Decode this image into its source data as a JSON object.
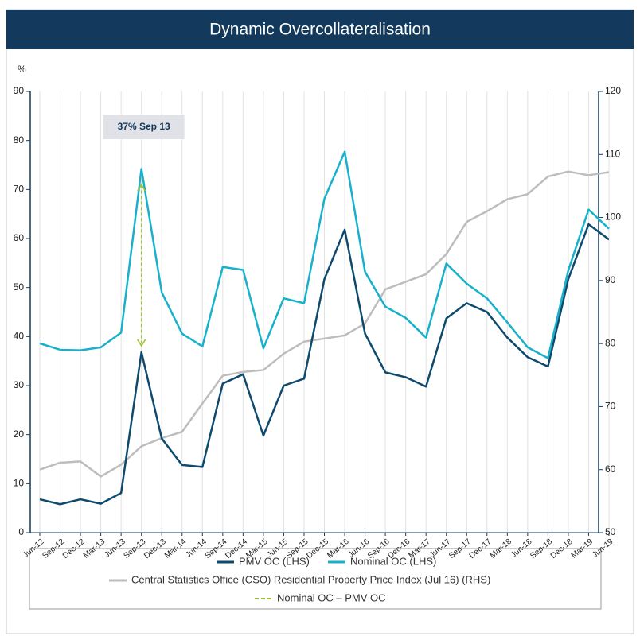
{
  "chart_data": {
    "type": "line",
    "title": "Dynamic Overcollateralisation",
    "y_label": "%",
    "categories": [
      "Jun-12",
      "Sep-12",
      "Dec-12",
      "Mar-13",
      "Jun-13",
      "Sep-13",
      "Dec-13",
      "Mar-14",
      "Jun-14",
      "Sep-14",
      "Dec-14",
      "Mar-15",
      "Jun-15",
      "Sep-15",
      "Dec-15",
      "Mar-16",
      "Jun-16",
      "Sep-16",
      "Dec-16",
      "Mar-17",
      "Jun-17",
      "Sep-17",
      "Dec-17",
      "Mar-18",
      "Jun-18",
      "Sep-18",
      "Dec-18",
      "Mar-19",
      "Jun-19"
    ],
    "series": [
      {
        "name": "PMV OC (LHS)",
        "color": "#0d4a6e",
        "values": [
          6.8,
          5.8,
          6.8,
          5.9,
          8.1,
          36.8,
          19.2,
          13.8,
          13.4,
          30.4,
          32.3,
          19.8,
          30.0,
          31.4,
          51.7,
          61.8,
          40.6,
          32.7,
          31.7,
          29.8,
          43.7,
          46.8,
          45.0,
          39.8,
          35.8,
          33.9,
          51.7,
          62.9,
          59.8
        ]
      },
      {
        "name": "Nominal OC (LHS)",
        "color": "#17b1cc",
        "values": [
          38.6,
          37.3,
          37.2,
          37.8,
          40.8,
          74.2,
          49.0,
          40.6,
          38.0,
          54.2,
          53.6,
          37.6,
          47.8,
          46.8,
          68.1,
          77.7,
          53.2,
          46.1,
          43.8,
          39.8,
          54.9,
          50.8,
          47.8,
          42.9,
          37.8,
          35.6,
          53.5,
          65.9,
          62.0
        ]
      },
      {
        "name": "Central Statistics Office (CSO) Residential Property Price Index (Jul 16) (RHS)",
        "color": "#bdbdbd",
        "axis": "y2",
        "values": [
          60.0,
          61.1,
          61.3,
          58.9,
          60.8,
          63.7,
          65.0,
          66.0,
          70.5,
          74.9,
          75.5,
          75.8,
          78.4,
          80.3,
          80.8,
          81.3,
          83.2,
          88.6,
          89.8,
          91.0,
          94.2,
          99.3,
          101.0,
          102.9,
          103.7,
          106.5,
          107.3,
          106.7,
          107.2
        ]
      }
    ],
    "annotation": {
      "text": "37% Sep 13",
      "category": 5,
      "color": "#9bc232",
      "legend_label": "Nominal OC – PMV OC"
    },
    "ylim": [
      0,
      90
    ],
    "yticks": [
      0,
      10,
      20,
      30,
      40,
      50,
      60,
      70,
      80,
      90
    ],
    "y2lim": [
      50,
      120
    ],
    "y2ticks": [
      50,
      60,
      70,
      80,
      90,
      100,
      110,
      120
    ],
    "grid": true
  }
}
